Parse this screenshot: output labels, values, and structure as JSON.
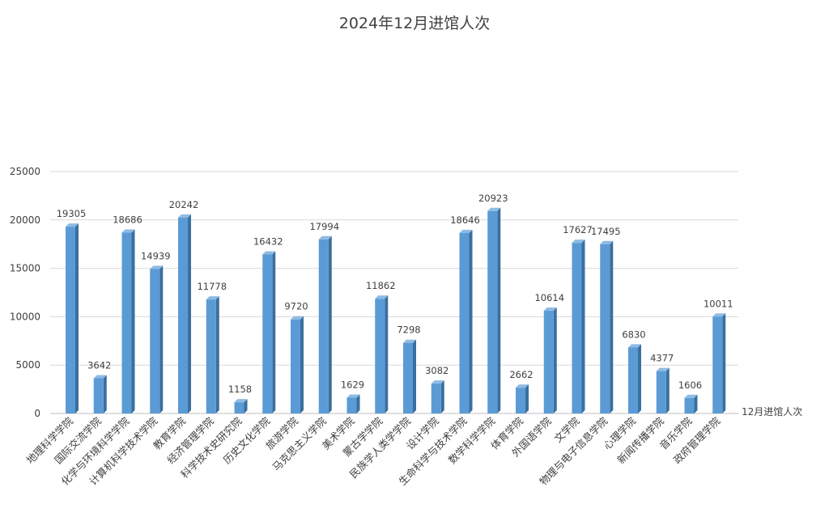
{
  "chart_data": {
    "type": "bar",
    "title": "2024年12月进馆人次",
    "categories": [
      "地理科学学院",
      "国际交流学院",
      "化学与环境科学学院",
      "计算机科学技术学院",
      "教育学院",
      "经济管理学院",
      "科学技术史研究院",
      "历史文化学院",
      "旅游学院",
      "马克思主义学院",
      "美术学院",
      "蒙古学学院",
      "民族学人类学学院",
      "设计学院",
      "生命科学与技术学院",
      "数学科学学院",
      "体育学院",
      "外国语学院",
      "文学院",
      "物理与电子信息学院",
      "心理学院",
      "新闻传播学院",
      "音乐学院",
      "政府管理学院"
    ],
    "series": [
      {
        "name": "12月进馆人次",
        "values": [
          19305,
          3642,
          18686,
          14939,
          20242,
          11778,
          1158,
          16432,
          9720,
          17994,
          1629,
          11862,
          7298,
          3082,
          18646,
          20923,
          2662,
          10614,
          17627,
          17495,
          6830,
          4377,
          1606,
          10011
        ]
      }
    ],
    "ylim": [
      0,
      25000
    ],
    "yticks": [
      0,
      5000,
      10000,
      15000,
      20000,
      25000
    ],
    "grid": true,
    "legend_position": "right",
    "bar_color": "#5b9bd5",
    "bar_side_color": "#3a6f9f",
    "bar_top_color": "#8fbbe3"
  }
}
